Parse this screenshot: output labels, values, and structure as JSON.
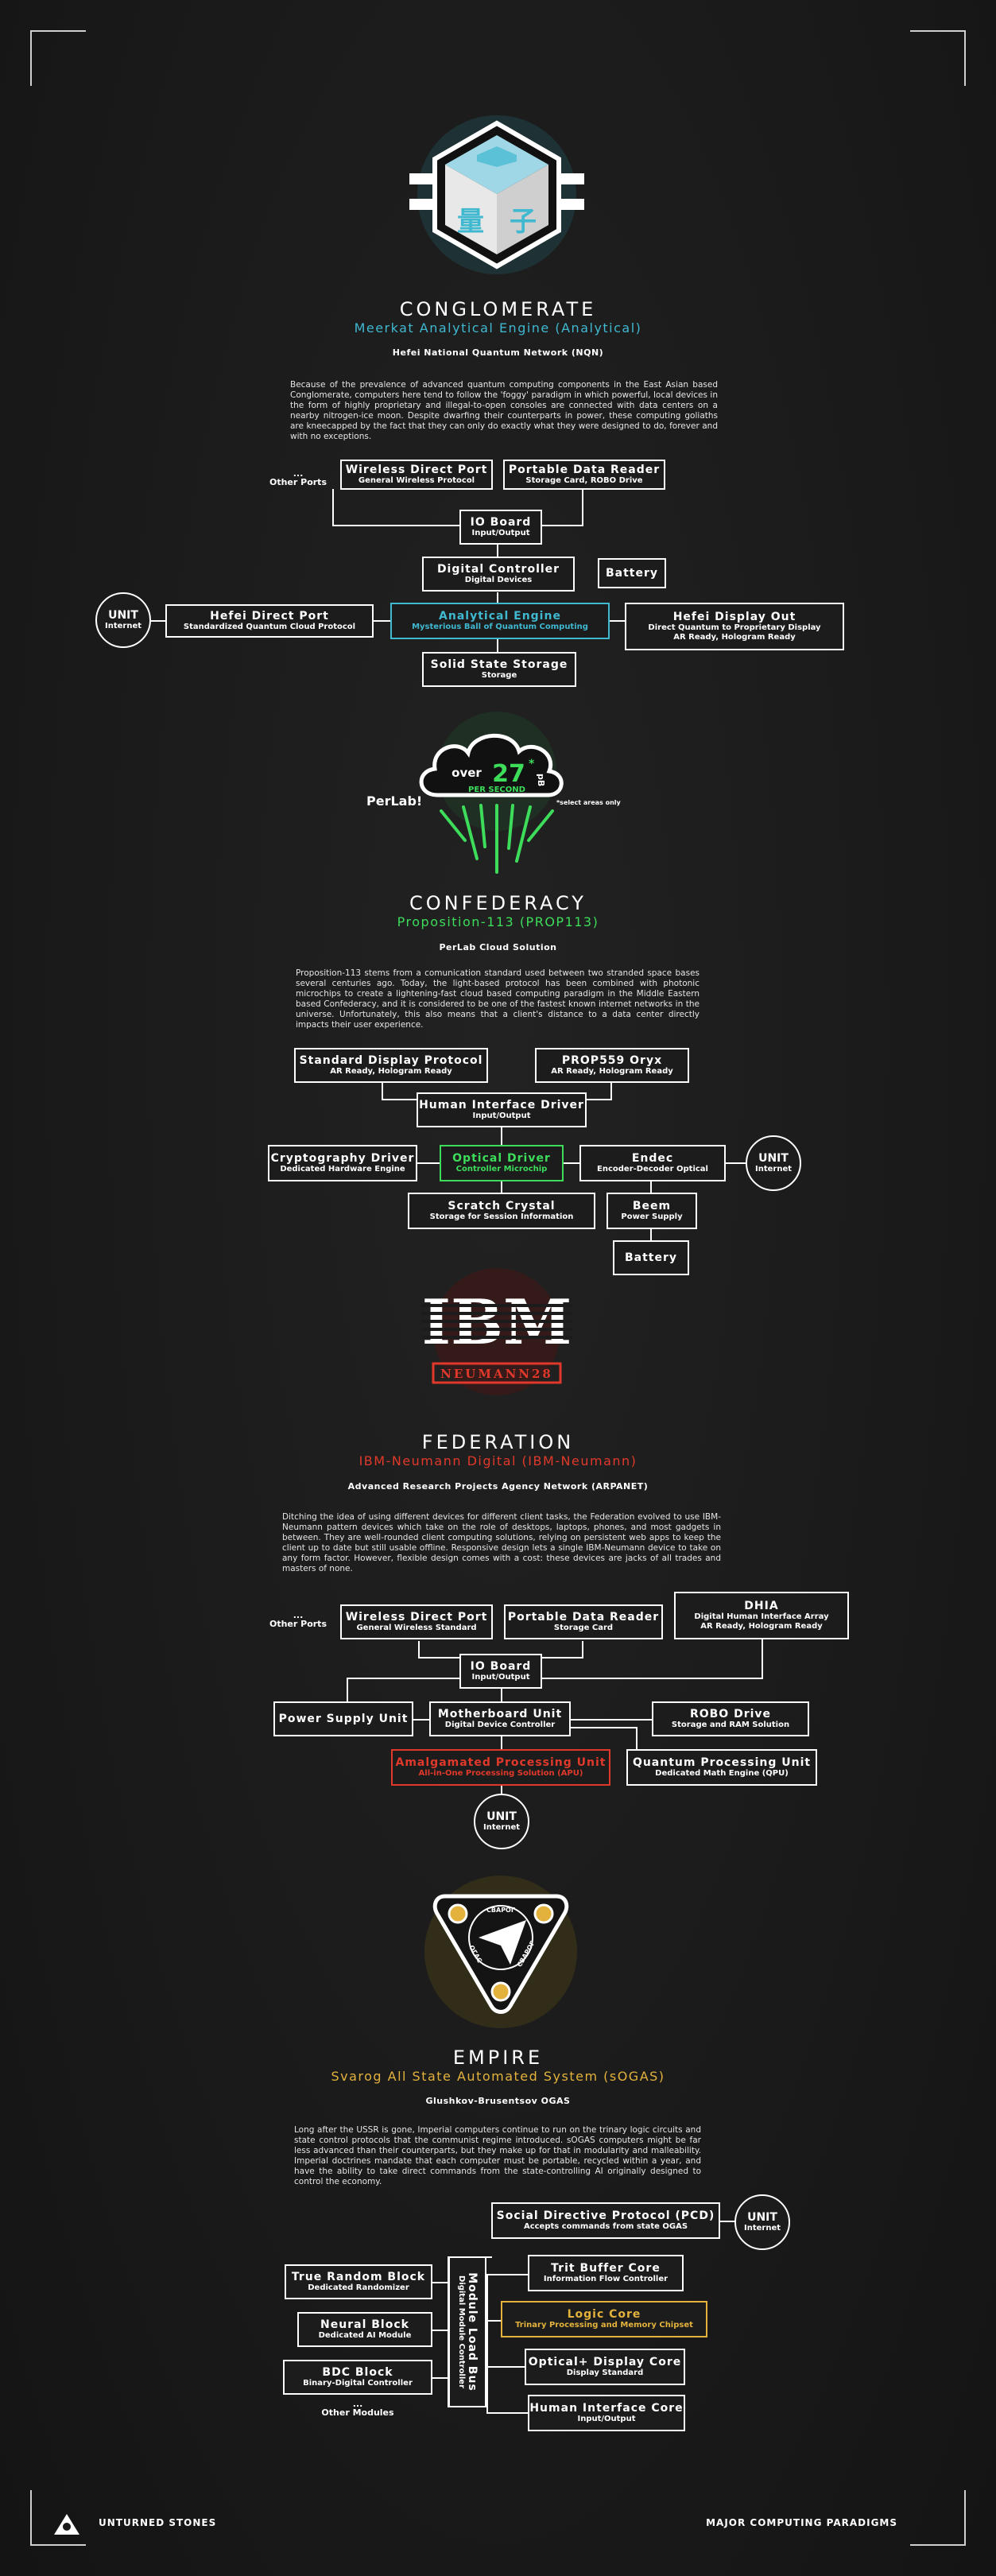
{
  "sections": {
    "conglomerate": {
      "title": "CONGLOMERATE",
      "subtitle": "Meerkat Analytical Engine (Analytical)",
      "network": "Hefei National Quantum Network (NQN)",
      "paragraph": "Because of the prevalence of advanced quantum computing components in the East Asian based Conglomerate, computers here tend to follow the 'foggy' paradigm in which powerful, local devices in the form of highly proprietary and illegal-to-open consoles are connected with data centers on a nearby nitrogen-ice moon. Despite dwarfing their counterparts in power, these computing goliaths are kneecapped by the fact that they can only do exactly what they were designed to do, forever and with no exceptions.",
      "accent": "#3fb8d0",
      "logo_glyphs": "量子",
      "other_ports": "...\nOther Ports",
      "nodes": {
        "wireless": {
          "name": "Wireless Direct Port",
          "desc": "General Wireless Protocol"
        },
        "reader": {
          "name": "Portable Data Reader",
          "desc": "Storage Card, ROBO Drive"
        },
        "io": {
          "name": "IO Board",
          "desc": "Input/Output"
        },
        "controller": {
          "name": "Digital Controller",
          "desc": "Digital Devices"
        },
        "battery": {
          "name": "Battery",
          "desc": ""
        },
        "unit": {
          "name": "UNIT",
          "desc": "Internet"
        },
        "direct_port": {
          "name": "Hefei Direct Port",
          "desc": "Standardized Quantum Cloud Protocol"
        },
        "engine": {
          "name": "Analytical Engine",
          "desc": "Mysterious Ball of Quantum Computing"
        },
        "display_out": {
          "name": "Hefei Display Out",
          "desc": "Direct Quantum to Proprietary Display",
          "desc2": "AR Ready, Hologram Ready"
        },
        "ssd": {
          "name": "Solid State Storage",
          "desc": "Storage"
        }
      }
    },
    "confederacy": {
      "title": "CONFEDERACY",
      "subtitle": "Proposition-113 (PROP113)",
      "network": "PerLab Cloud Solution",
      "paragraph": "Proposition-113 stems from a comunication standard used between two stranded space bases several centuries ago. Today, the light-based protocol has been combined with photonic microchips to create a lightening-fast cloud based computing paradigm in the Middle Eastern based Confederacy, and it is considered to be one of the fastest known internet networks in the universe. Unfortunately, this also means that a client's distance to a data center directly impacts their user experience.",
      "accent": "#3ddc5a",
      "logo": {
        "brand": "PerLab!",
        "over": "over",
        "number": "27",
        "star": "*",
        "unit": "pB",
        "per": "PER SECOND",
        "note": "*select areas only"
      },
      "nodes": {
        "display_protocol": {
          "name": "Standard Display Protocol",
          "desc": "AR Ready, Hologram Ready"
        },
        "oryx": {
          "name": "PROP559 Oryx",
          "desc": "AR Ready, Hologram Ready"
        },
        "hid": {
          "name": "Human Interface Driver",
          "desc": "Input/Output"
        },
        "crypto": {
          "name": "Cryptography Driver",
          "desc": "Dedicated Hardware Engine"
        },
        "optical": {
          "name": "Optical Driver",
          "desc": "Controller Microchip"
        },
        "endec": {
          "name": "Endec",
          "desc": "Encoder-Decoder Optical"
        },
        "unit": {
          "name": "UNIT",
          "desc": "Internet"
        },
        "scratch": {
          "name": "Scratch Crystal",
          "desc": "Storage for Session Information"
        },
        "beem": {
          "name": "Beem",
          "desc": "Power Supply"
        },
        "battery": {
          "name": "Battery",
          "desc": ""
        }
      }
    },
    "federation": {
      "title": "FEDERATION",
      "subtitle": "IBM-Neumann Digital (IBM-Neumann)",
      "network": "Advanced Research Projects Agency Network (ARPANET)",
      "paragraph": "Ditching the idea of using different devices for different client tasks, the Federation evolved to use IBM-Neumann pattern devices which take on the role of desktops, laptops, phones, and most gadgets in between. They are well-rounded client computing solutions, relying on persistent web apps to keep the client up to date but still usable offline. Responsive design lets a single IBM-Neumann device to take on any form factor. However, flexible design comes with a cost: these devices are jacks of all trades and masters of none.",
      "accent": "#e0392b",
      "logo": {
        "brand": "IBM",
        "model": "NEUMANN28"
      },
      "other_ports": "...\nOther Ports",
      "nodes": {
        "wireless": {
          "name": "Wireless Direct Port",
          "desc": "General Wireless Standard"
        },
        "reader": {
          "name": "Portable Data Reader",
          "desc": "Storage Card"
        },
        "dhia": {
          "name": "DHIA",
          "desc": "Digital Human Interface Array",
          "desc2": "AR Ready, Hologram Ready"
        },
        "io": {
          "name": "IO Board",
          "desc": "Input/Output"
        },
        "psu": {
          "name": "Power Supply Unit",
          "desc": ""
        },
        "motherboard": {
          "name": "Motherboard Unit",
          "desc": "Digital Device Controller"
        },
        "robo": {
          "name": "ROBO Drive",
          "desc": "Storage and RAM Solution"
        },
        "apu": {
          "name": "Amalgamated Processing Unit",
          "desc": "All-in-One Processing Solution (APU)"
        },
        "qpu": {
          "name": "Quantum Processing Unit",
          "desc": "Dedicated Math Engine (QPU)"
        },
        "unit": {
          "name": "UNIT",
          "desc": "Internet"
        }
      }
    },
    "empire": {
      "title": "EMPIRE",
      "subtitle": "Svarog All State Automated System (sOGAS)",
      "network": "Glushkov-Brusentsov OGAS",
      "paragraph": "Long after the USSR is gone, Imperial computers continue to run on the trinary logic circuits and state control protocols that the communist regime introduced. sOGAS computers might be far less advanced than their counterparts, but they make up for that in modularity and malleability. Imperial doctrines mandate that each computer must be portable, recycled within a year, and have the ability to take direct commands from the state-controlling AI originally designed to control the economy.",
      "accent": "#e3b23c",
      "logo": {
        "ring_top": "СВАРОГ",
        "ring_left": "ОГАС",
        "ring_right": "СВАРОГ"
      },
      "other_modules": "...\nOther Modules",
      "nodes": {
        "pcd": {
          "name": "Social Directive Protocol (PCD)",
          "desc": "Accepts commands from state OGAS"
        },
        "unit": {
          "name": "UNIT",
          "desc": "Internet"
        },
        "trit": {
          "name": "Trit Buffer Core",
          "desc": "Information Flow Controller"
        },
        "random": {
          "name": "True Random Block",
          "desc": "Dedicated Randomizer"
        },
        "bus": {
          "name": "Module Load Bus",
          "desc": "Digital Module Controller"
        },
        "logic": {
          "name": "Logic Core",
          "desc": "Trinary Processing and Memory Chipset"
        },
        "neural": {
          "name": "Neural Block",
          "desc": "Dedicated AI Module"
        },
        "optical": {
          "name": "Optical+ Display Core",
          "desc": "Display Standard"
        },
        "bdc": {
          "name": "BDC Block",
          "desc": "Binary-Digital Controller"
        },
        "hic": {
          "name": "Human Interface Core",
          "desc": "Input/Output"
        }
      }
    }
  },
  "footer": {
    "left": "UNTURNED STONES",
    "right": "MAJOR COMPUTING PARADIGMS"
  }
}
